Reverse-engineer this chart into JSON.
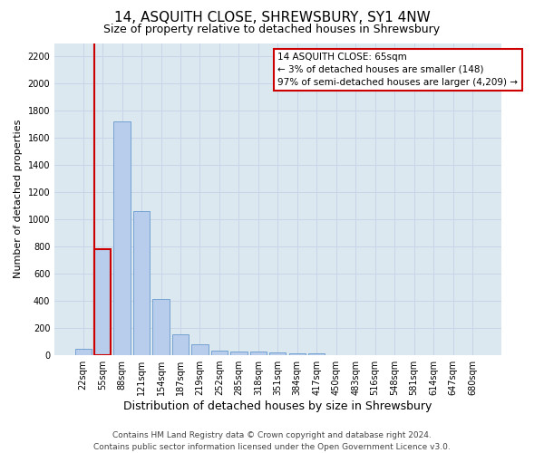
{
  "title": "14, ASQUITH CLOSE, SHREWSBURY, SY1 4NW",
  "subtitle": "Size of property relative to detached houses in Shrewsbury",
  "xlabel": "Distribution of detached houses by size in Shrewsbury",
  "ylabel": "Number of detached properties",
  "categories": [
    "22sqm",
    "55sqm",
    "88sqm",
    "121sqm",
    "154sqm",
    "187sqm",
    "219sqm",
    "252sqm",
    "285sqm",
    "318sqm",
    "351sqm",
    "384sqm",
    "417sqm",
    "450sqm",
    "483sqm",
    "516sqm",
    "548sqm",
    "581sqm",
    "614sqm",
    "647sqm",
    "680sqm"
  ],
  "values": [
    50,
    780,
    1720,
    1060,
    415,
    155,
    80,
    35,
    30,
    25,
    20,
    15,
    15,
    0,
    0,
    0,
    0,
    0,
    0,
    0,
    0
  ],
  "bar_color": "#b8ccec",
  "bar_edge_color": "#6699cc",
  "highlight_index": 1,
  "highlight_bar_edge_color": "#cc0000",
  "annotation_box_text": "14 ASQUITH CLOSE: 65sqm\n← 3% of detached houses are smaller (148)\n97% of semi-detached houses are larger (4,209) →",
  "annotation_box_color": "#ffffff",
  "annotation_box_edge_color": "#cc0000",
  "ylim": [
    0,
    2300
  ],
  "yticks": [
    0,
    200,
    400,
    600,
    800,
    1000,
    1200,
    1400,
    1600,
    1800,
    2000,
    2200
  ],
  "grid_color": "#c8d4e8",
  "background_color": "#dce8f0",
  "footer_line1": "Contains HM Land Registry data © Crown copyright and database right 2024.",
  "footer_line2": "Contains public sector information licensed under the Open Government Licence v3.0.",
  "title_fontsize": 11,
  "subtitle_fontsize": 9,
  "xlabel_fontsize": 9,
  "ylabel_fontsize": 8,
  "tick_fontsize": 7,
  "annotation_fontsize": 7.5,
  "footer_fontsize": 6.5
}
